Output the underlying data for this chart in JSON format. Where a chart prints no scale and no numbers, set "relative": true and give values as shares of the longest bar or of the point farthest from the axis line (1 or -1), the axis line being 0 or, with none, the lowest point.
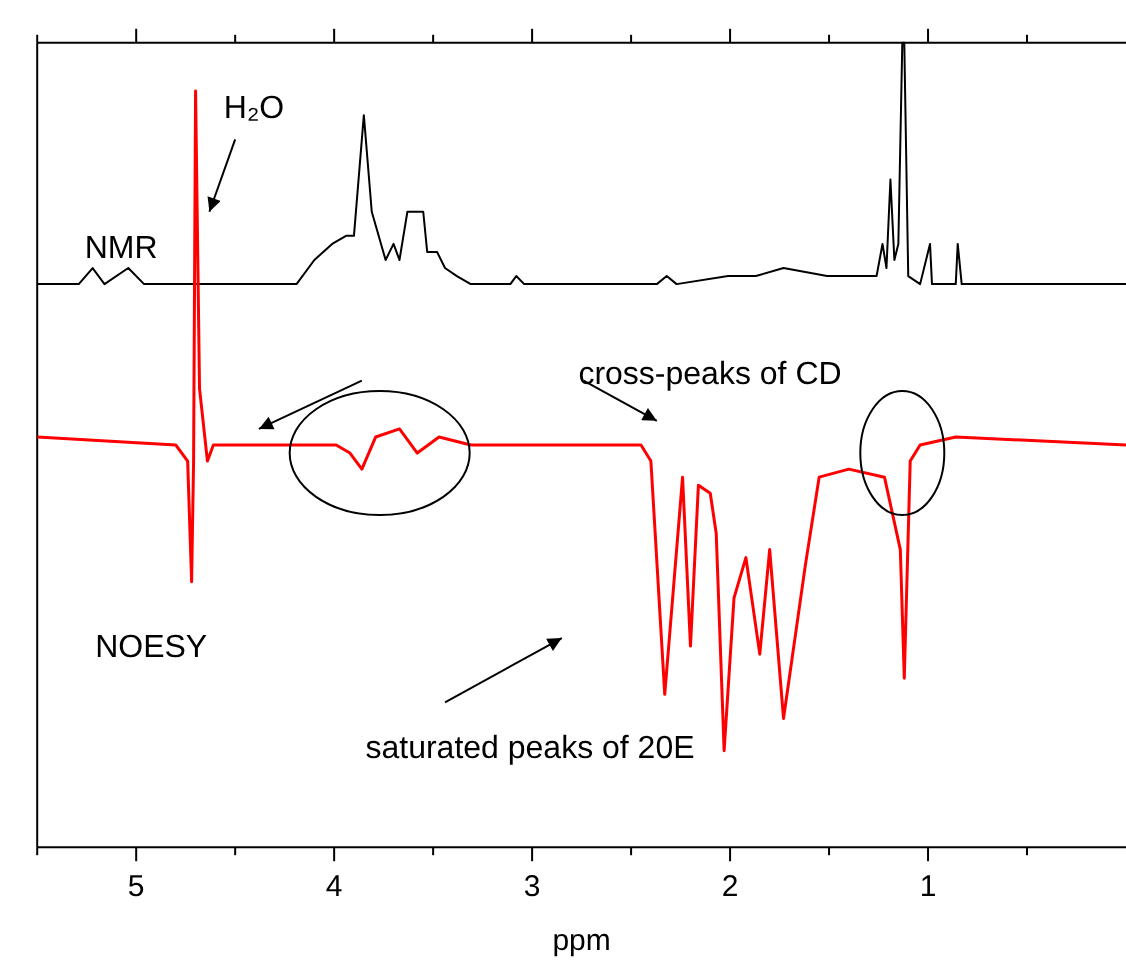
{
  "chart_data": {
    "type": "line",
    "relative": true,
    "xlabel": "ppm",
    "xlim": [
      5.5,
      0
    ],
    "xticks": [
      {
        "value": 5.5,
        "label": null
      },
      5,
      {
        "value": 4.5,
        "label": null
      },
      4,
      {
        "value": 3.5,
        "label": null
      },
      3,
      {
        "value": 2.5,
        "label": null
      },
      2,
      {
        "value": 1.5,
        "label": null
      },
      1,
      {
        "value": 0.5,
        "label": null
      }
    ],
    "legend": false,
    "grid": false,
    "marker": "none",
    "line_style": "solid",
    "series": [
      {
        "name": "NMR",
        "color": "#000000",
        "x": [
          5.5,
          5.29,
          5.22,
          5.16,
          5.04,
          4.96,
          4.19,
          4.1,
          4.01,
          3.94,
          3.9,
          3.85,
          3.81,
          3.74,
          3.7,
          3.67,
          3.63,
          3.58,
          3.55,
          3.53,
          3.48,
          3.44,
          3.38,
          3.31,
          3.11,
          3.08,
          3.04,
          2.37,
          2.32,
          2.27,
          2.01,
          1.87,
          1.73,
          1.51,
          1.37,
          1.26,
          1.23,
          1.21,
          1.19,
          1.17,
          1.15,
          1.13,
          1.12,
          1.1,
          1.04,
          0.99,
          0.98,
          0.86,
          0.85,
          0.83,
          0
        ],
        "values": [
          0.7,
          0.7,
          0.72,
          0.7,
          0.72,
          0.7,
          0.7,
          0.73,
          0.75,
          0.76,
          0.76,
          0.91,
          0.79,
          0.73,
          0.75,
          0.73,
          0.79,
          0.79,
          0.79,
          0.74,
          0.74,
          0.72,
          0.71,
          0.7,
          0.7,
          0.71,
          0.7,
          0.7,
          0.71,
          0.7,
          0.71,
          0.71,
          0.72,
          0.71,
          0.71,
          0.71,
          0.75,
          0.72,
          0.83,
          0.73,
          0.75,
          1.0,
          1.0,
          0.71,
          0.7,
          0.75,
          0.7,
          0.7,
          0.75,
          0.7,
          0.7
        ]
      },
      {
        "name": "NOESY",
        "color": "#ff0000",
        "x": [
          5.5,
          4.8,
          4.74,
          4.72,
          4.71,
          4.7,
          4.68,
          4.64,
          4.61,
          4.21,
          3.99,
          3.92,
          3.86,
          3.79,
          3.67,
          3.58,
          3.47,
          3.31,
          2.45,
          2.4,
          2.33,
          2.24,
          2.2,
          2.16,
          2.1,
          2.07,
          2.03,
          1.98,
          1.92,
          1.85,
          1.8,
          1.73,
          1.62,
          1.55,
          1.4,
          1.22,
          1.14,
          1.12,
          1.09,
          1.04,
          0.86,
          0
        ],
        "values": [
          0.51,
          0.5,
          0.48,
          0.33,
          0.48,
          0.94,
          0.57,
          0.48,
          0.5,
          0.5,
          0.5,
          0.49,
          0.47,
          0.51,
          0.52,
          0.49,
          0.51,
          0.5,
          0.5,
          0.48,
          0.19,
          0.46,
          0.25,
          0.45,
          0.44,
          0.39,
          0.12,
          0.31,
          0.36,
          0.24,
          0.37,
          0.16,
          0.35,
          0.46,
          0.47,
          0.46,
          0.37,
          0.21,
          0.48,
          0.5,
          0.51,
          0.5
        ]
      }
    ],
    "annotations": [
      "H₂O",
      "cross-peaks of CD",
      "saturated peaks of 20E"
    ]
  }
}
